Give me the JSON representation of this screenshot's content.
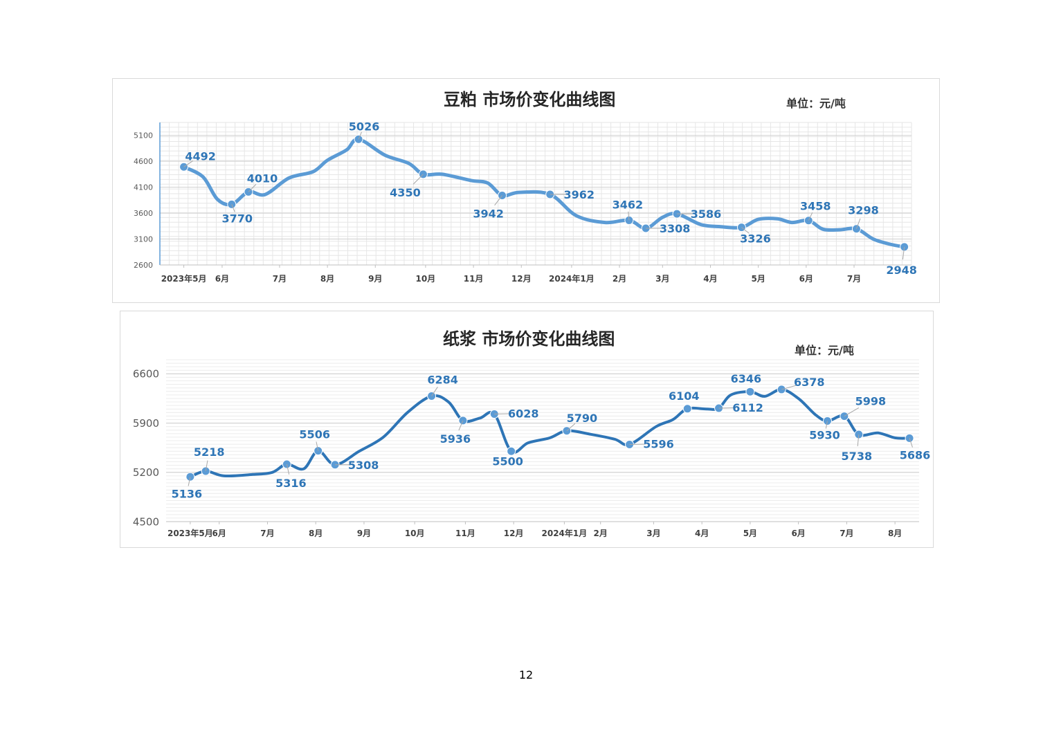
{
  "page_number": "12",
  "chart_data": [
    {
      "type": "line",
      "title": "豆粕 市场价变化曲线图",
      "unit": "单位：元/吨",
      "line_color": "#5b9bd5",
      "label_color": "#2e75b6",
      "ylim": [
        2600,
        5350
      ],
      "yticks": [
        "2600",
        "3100",
        "3600",
        "4100",
        "4600",
        "5100"
      ],
      "grid": "minor-and-major",
      "xticks": [
        {
          "t": 0.5,
          "label": "2023年5月"
        },
        {
          "t": 1.3,
          "label": "6月"
        },
        {
          "t": 2.5,
          "label": "7月"
        },
        {
          "t": 3.5,
          "label": "8月"
        },
        {
          "t": 4.5,
          "label": "9月"
        },
        {
          "t": 5.55,
          "label": "10月"
        },
        {
          "t": 6.55,
          "label": "11月"
        },
        {
          "t": 7.55,
          "label": "12月"
        },
        {
          "t": 8.6,
          "label": "2024年1月"
        },
        {
          "t": 9.6,
          "label": "2月"
        },
        {
          "t": 10.5,
          "label": "3月"
        },
        {
          "t": 11.5,
          "label": "4月"
        },
        {
          "t": 12.5,
          "label": "5月"
        },
        {
          "t": 13.5,
          "label": "6月"
        },
        {
          "t": 14.5,
          "label": "7月"
        }
      ],
      "xlim": [
        0,
        15.7
      ],
      "series": [
        {
          "points": [
            {
              "t": 0.5,
              "v": 4492,
              "label": "4492",
              "marker": true
            },
            {
              "t": 0.9,
              "v": 4300
            },
            {
              "t": 1.2,
              "v": 3870
            },
            {
              "t": 1.5,
              "v": 3770,
              "label": "3770",
              "marker": true
            },
            {
              "t": 1.85,
              "v": 4010,
              "label": "4010",
              "marker": true
            },
            {
              "t": 2.2,
              "v": 3960
            },
            {
              "t": 2.7,
              "v": 4280
            },
            {
              "t": 3.2,
              "v": 4400
            },
            {
              "t": 3.5,
              "v": 4620
            },
            {
              "t": 3.9,
              "v": 4820
            },
            {
              "t": 4.15,
              "v": 5026,
              "label": "5026",
              "marker": true
            },
            {
              "t": 4.7,
              "v": 4720
            },
            {
              "t": 5.2,
              "v": 4560
            },
            {
              "t": 5.5,
              "v": 4350,
              "label": "4350",
              "marker": true
            },
            {
              "t": 5.9,
              "v": 4350
            },
            {
              "t": 6.5,
              "v": 4230
            },
            {
              "t": 6.85,
              "v": 4180
            },
            {
              "t": 7.15,
              "v": 3942,
              "label": "3942",
              "marker": true
            },
            {
              "t": 7.5,
              "v": 4000
            },
            {
              "t": 8.15,
              "v": 3962,
              "label": "3962",
              "marker": true
            },
            {
              "t": 8.7,
              "v": 3550
            },
            {
              "t": 9.3,
              "v": 3420
            },
            {
              "t": 9.8,
              "v": 3462,
              "label": "3462",
              "marker": true
            },
            {
              "t": 10.15,
              "v": 3308,
              "label": "3308",
              "marker": true
            },
            {
              "t": 10.5,
              "v": 3520
            },
            {
              "t": 10.8,
              "v": 3586,
              "label": "3586",
              "marker": true
            },
            {
              "t": 11.3,
              "v": 3380
            },
            {
              "t": 11.7,
              "v": 3340
            },
            {
              "t": 12.15,
              "v": 3326,
              "label": "3326",
              "marker": true
            },
            {
              "t": 12.5,
              "v": 3480
            },
            {
              "t": 12.9,
              "v": 3490
            },
            {
              "t": 13.2,
              "v": 3420
            },
            {
              "t": 13.55,
              "v": 3458,
              "label": "3458",
              "marker": true
            },
            {
              "t": 13.85,
              "v": 3290
            },
            {
              "t": 14.2,
              "v": 3280
            },
            {
              "t": 14.55,
              "v": 3298,
              "label": "3298",
              "marker": true
            },
            {
              "t": 14.9,
              "v": 3100
            },
            {
              "t": 15.25,
              "v": 3000
            },
            {
              "t": 15.55,
              "v": 2948,
              "label": "2948",
              "marker": true
            }
          ]
        }
      ]
    },
    {
      "type": "line",
      "title": "纸浆 市场价变化曲线图",
      "unit": "单位：元/吨",
      "line_color": "#2e75b6",
      "marker_color": "#5b9bd5",
      "label_color": "#2e75b6",
      "ylim": [
        4500,
        6800
      ],
      "yticks": [
        "4500",
        "5200",
        "5900",
        "6600"
      ],
      "grid": "horizontal",
      "xticks": [
        {
          "t": 0.5,
          "label": "2023年5月"
        },
        {
          "t": 1.1,
          "label": "6月"
        },
        {
          "t": 2.1,
          "label": "7月"
        },
        {
          "t": 3.1,
          "label": "8月"
        },
        {
          "t": 4.1,
          "label": "9月"
        },
        {
          "t": 5.15,
          "label": "10月"
        },
        {
          "t": 6.2,
          "label": "11月"
        },
        {
          "t": 7.2,
          "label": "12月"
        },
        {
          "t": 8.25,
          "label": "2024年1月"
        },
        {
          "t": 9.0,
          "label": "2月"
        },
        {
          "t": 10.1,
          "label": "3月"
        },
        {
          "t": 11.1,
          "label": "4月"
        },
        {
          "t": 12.1,
          "label": "5月"
        },
        {
          "t": 13.1,
          "label": "6月"
        },
        {
          "t": 14.1,
          "label": "7月"
        },
        {
          "t": 15.1,
          "label": "8月"
        }
      ],
      "xlim": [
        0,
        15.6
      ],
      "series": [
        {
          "points": [
            {
              "t": 0.5,
              "v": 5136,
              "label": "5136",
              "marker": true
            },
            {
              "t": 0.82,
              "v": 5218,
              "label": "5218",
              "marker": true
            },
            {
              "t": 1.2,
              "v": 5150
            },
            {
              "t": 1.8,
              "v": 5170
            },
            {
              "t": 2.2,
              "v": 5200
            },
            {
              "t": 2.5,
              "v": 5316,
              "label": "5316",
              "marker": true
            },
            {
              "t": 2.85,
              "v": 5250
            },
            {
              "t": 3.15,
              "v": 5506,
              "label": "5506",
              "marker": true
            },
            {
              "t": 3.5,
              "v": 5308,
              "label": "5308",
              "marker": true
            },
            {
              "t": 4.0,
              "v": 5500
            },
            {
              "t": 4.5,
              "v": 5700
            },
            {
              "t": 5.0,
              "v": 6050
            },
            {
              "t": 5.5,
              "v": 6284,
              "label": "6284",
              "marker": true
            },
            {
              "t": 5.85,
              "v": 6200
            },
            {
              "t": 6.15,
              "v": 5936,
              "label": "5936",
              "marker": true
            },
            {
              "t": 6.5,
              "v": 5970
            },
            {
              "t": 6.8,
              "v": 6028,
              "label": "6028",
              "marker": true
            },
            {
              "t": 7.15,
              "v": 5500,
              "label": "5500",
              "marker": true
            },
            {
              "t": 7.5,
              "v": 5620
            },
            {
              "t": 7.95,
              "v": 5690
            },
            {
              "t": 8.3,
              "v": 5790,
              "label": "5790",
              "marker": true
            },
            {
              "t": 8.8,
              "v": 5740
            },
            {
              "t": 9.3,
              "v": 5670
            },
            {
              "t": 9.6,
              "v": 5596,
              "label": "5596",
              "marker": true
            },
            {
              "t": 10.15,
              "v": 5850
            },
            {
              "t": 10.5,
              "v": 5950
            },
            {
              "t": 10.8,
              "v": 6104,
              "label": "6104",
              "marker": true
            },
            {
              "t": 11.2,
              "v": 6100
            },
            {
              "t": 11.45,
              "v": 6112,
              "label": "6112",
              "marker": true
            },
            {
              "t": 11.7,
              "v": 6300
            },
            {
              "t": 12.1,
              "v": 6346,
              "label": "6346",
              "marker": true
            },
            {
              "t": 12.4,
              "v": 6280
            },
            {
              "t": 12.75,
              "v": 6378,
              "label": "6378",
              "marker": true
            },
            {
              "t": 13.1,
              "v": 6250
            },
            {
              "t": 13.45,
              "v": 6020
            },
            {
              "t": 13.7,
              "v": 5930,
              "label": "5930",
              "marker": true
            },
            {
              "t": 14.05,
              "v": 5998,
              "label": "5998",
              "marker": true
            },
            {
              "t": 14.35,
              "v": 5738,
              "label": "5738",
              "marker": true
            },
            {
              "t": 14.75,
              "v": 5760
            },
            {
              "t": 15.1,
              "v": 5690
            },
            {
              "t": 15.4,
              "v": 5686,
              "label": "5686",
              "marker": true
            }
          ]
        }
      ]
    }
  ]
}
